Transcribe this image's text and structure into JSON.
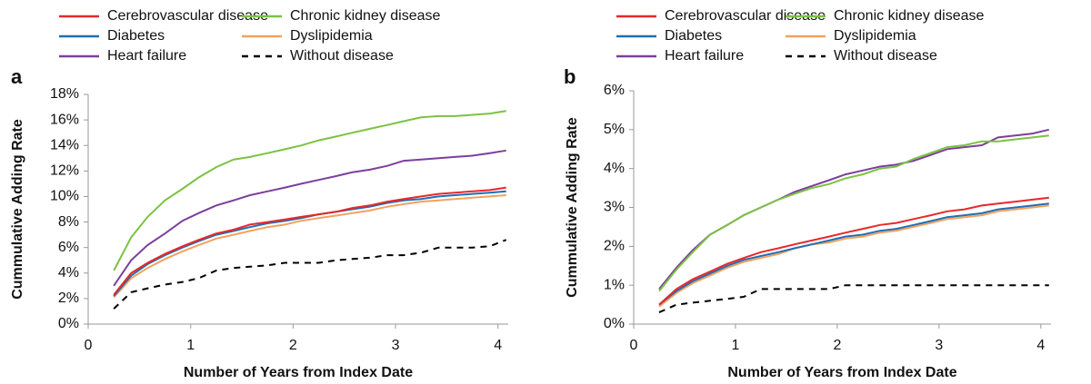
{
  "chart_data": [
    {
      "type": "line",
      "label": "a",
      "x_label": "Number of Years from Index Date",
      "y_label": "Cummulative Adding Rate",
      "xlim": [
        0,
        4.1
      ],
      "xticks": [
        0,
        1,
        2,
        3,
        4
      ],
      "ylim": [
        0,
        18
      ],
      "yticks": [
        {
          "value": 0,
          "label": "0%"
        },
        {
          "value": 2,
          "label": "2%"
        },
        {
          "value": 4,
          "label": "4%"
        },
        {
          "value": 6,
          "label": "6%"
        },
        {
          "value": 8,
          "label": "8%"
        },
        {
          "value": 10,
          "label": "10%"
        },
        {
          "value": 12,
          "label": "12%"
        },
        {
          "value": 14,
          "label": "14%"
        },
        {
          "value": 16,
          "label": "16%"
        },
        {
          "value": 18,
          "label": "18%"
        }
      ],
      "x": [
        0.25,
        0.42,
        0.58,
        0.75,
        0.92,
        1.08,
        1.25,
        1.42,
        1.58,
        1.75,
        1.92,
        2.08,
        2.25,
        2.42,
        2.58,
        2.75,
        2.92,
        3.08,
        3.25,
        3.42,
        3.58,
        3.75,
        3.92,
        4.08
      ],
      "series": [
        {
          "name": "Cerebrovascular disease",
          "color": "#e8282a",
          "style": "solid",
          "values": [
            2.3,
            4.0,
            4.8,
            5.5,
            6.1,
            6.6,
            7.1,
            7.4,
            7.8,
            8.0,
            8.2,
            8.4,
            8.6,
            8.8,
            9.1,
            9.3,
            9.6,
            9.8,
            10.0,
            10.2,
            10.3,
            10.4,
            10.5,
            10.7
          ]
        },
        {
          "name": "Chronic kidney disease",
          "color": "#7cc242",
          "style": "solid",
          "values": [
            4.2,
            6.8,
            8.4,
            9.7,
            10.6,
            11.5,
            12.3,
            12.9,
            13.1,
            13.4,
            13.7,
            14.0,
            14.4,
            14.7,
            15.0,
            15.3,
            15.6,
            15.9,
            16.2,
            16.3,
            16.3,
            16.4,
            16.5,
            16.7
          ]
        },
        {
          "name": "Diabetes",
          "color": "#1f6fb5",
          "style": "solid",
          "values": [
            2.2,
            3.8,
            4.7,
            5.4,
            6.0,
            6.5,
            7.0,
            7.3,
            7.6,
            7.9,
            8.1,
            8.3,
            8.6,
            8.8,
            9.0,
            9.2,
            9.5,
            9.7,
            9.8,
            10.0,
            10.1,
            10.2,
            10.3,
            10.4
          ]
        },
        {
          "name": "Dyslipidemia",
          "color": "#f4a15d",
          "style": "solid",
          "values": [
            2.1,
            3.6,
            4.4,
            5.1,
            5.7,
            6.2,
            6.7,
            7.0,
            7.3,
            7.6,
            7.8,
            8.1,
            8.3,
            8.5,
            8.7,
            8.9,
            9.2,
            9.4,
            9.6,
            9.7,
            9.8,
            9.9,
            10.0,
            10.1
          ]
        },
        {
          "name": "Heart failure",
          "color": "#7b3f9e",
          "style": "solid",
          "values": [
            3.0,
            5.0,
            6.2,
            7.1,
            8.1,
            8.7,
            9.3,
            9.7,
            10.1,
            10.4,
            10.7,
            11.0,
            11.3,
            11.6,
            11.9,
            12.1,
            12.4,
            12.8,
            12.9,
            13.0,
            13.1,
            13.2,
            13.4,
            13.6
          ]
        },
        {
          "name": "Without disease",
          "color": "#000000",
          "style": "dashed",
          "values": [
            1.2,
            2.5,
            2.8,
            3.1,
            3.3,
            3.6,
            4.2,
            4.4,
            4.5,
            4.6,
            4.8,
            4.8,
            4.8,
            5.0,
            5.1,
            5.2,
            5.4,
            5.4,
            5.6,
            6.0,
            6.0,
            6.0,
            6.1,
            6.6
          ]
        }
      ]
    },
    {
      "type": "line",
      "label": "b",
      "x_label": "Number of Years from Index Date",
      "y_label": "Cummulative Adding Rate",
      "xlim": [
        0,
        4.1
      ],
      "xticks": [
        0,
        1,
        2,
        3,
        4
      ],
      "ylim": [
        0,
        6
      ],
      "yticks": [
        {
          "value": 0,
          "label": "0%"
        },
        {
          "value": 1,
          "label": "1%"
        },
        {
          "value": 2,
          "label": "2%"
        },
        {
          "value": 3,
          "label": "3%"
        },
        {
          "value": 4,
          "label": "4%"
        },
        {
          "value": 5,
          "label": "5%"
        },
        {
          "value": 6,
          "label": "6%"
        }
      ],
      "x": [
        0.25,
        0.42,
        0.58,
        0.75,
        0.92,
        1.08,
        1.25,
        1.42,
        1.58,
        1.75,
        1.92,
        2.08,
        2.25,
        2.42,
        2.58,
        2.75,
        2.92,
        3.08,
        3.25,
        3.42,
        3.58,
        3.75,
        3.92,
        4.08
      ],
      "series": [
        {
          "name": "Cerebrovascular disease",
          "color": "#e8282a",
          "style": "solid",
          "values": [
            0.5,
            0.9,
            1.15,
            1.35,
            1.55,
            1.7,
            1.85,
            1.95,
            2.05,
            2.15,
            2.25,
            2.35,
            2.45,
            2.55,
            2.6,
            2.7,
            2.8,
            2.9,
            2.95,
            3.05,
            3.1,
            3.15,
            3.2,
            3.25
          ]
        },
        {
          "name": "Chronic kidney disease",
          "color": "#7cc242",
          "style": "solid",
          "values": [
            0.85,
            1.4,
            1.85,
            2.3,
            2.55,
            2.8,
            3.0,
            3.2,
            3.35,
            3.5,
            3.6,
            3.75,
            3.85,
            4.0,
            4.05,
            4.25,
            4.4,
            4.55,
            4.6,
            4.7,
            4.7,
            4.75,
            4.8,
            4.85
          ]
        },
        {
          "name": "Diabetes",
          "color": "#1f6fb5",
          "style": "solid",
          "values": [
            0.5,
            0.85,
            1.1,
            1.3,
            1.5,
            1.65,
            1.75,
            1.85,
            1.95,
            2.05,
            2.15,
            2.25,
            2.3,
            2.4,
            2.45,
            2.55,
            2.65,
            2.75,
            2.8,
            2.85,
            2.95,
            3.0,
            3.05,
            3.1
          ]
        },
        {
          "name": "Dyslipidemia",
          "color": "#f4a15d",
          "style": "solid",
          "values": [
            0.45,
            0.8,
            1.05,
            1.25,
            1.45,
            1.6,
            1.7,
            1.8,
            1.95,
            2.05,
            2.1,
            2.2,
            2.25,
            2.35,
            2.4,
            2.5,
            2.6,
            2.7,
            2.75,
            2.8,
            2.9,
            2.95,
            3.0,
            3.05
          ]
        },
        {
          "name": "Heart failure",
          "color": "#7b3f9e",
          "style": "solid",
          "values": [
            0.9,
            1.45,
            1.9,
            2.3,
            2.55,
            2.8,
            3.0,
            3.2,
            3.4,
            3.55,
            3.7,
            3.85,
            3.95,
            4.05,
            4.1,
            4.2,
            4.35,
            4.5,
            4.55,
            4.6,
            4.8,
            4.85,
            4.9,
            5.0
          ]
        },
        {
          "name": "Without disease",
          "color": "#000000",
          "style": "dashed",
          "values": [
            0.3,
            0.5,
            0.55,
            0.6,
            0.65,
            0.7,
            0.9,
            0.9,
            0.9,
            0.9,
            0.9,
            1.0,
            1.0,
            1.0,
            1.0,
            1.0,
            1.0,
            1.0,
            1.0,
            1.0,
            1.0,
            1.0,
            1.0,
            1.0
          ]
        }
      ]
    }
  ]
}
